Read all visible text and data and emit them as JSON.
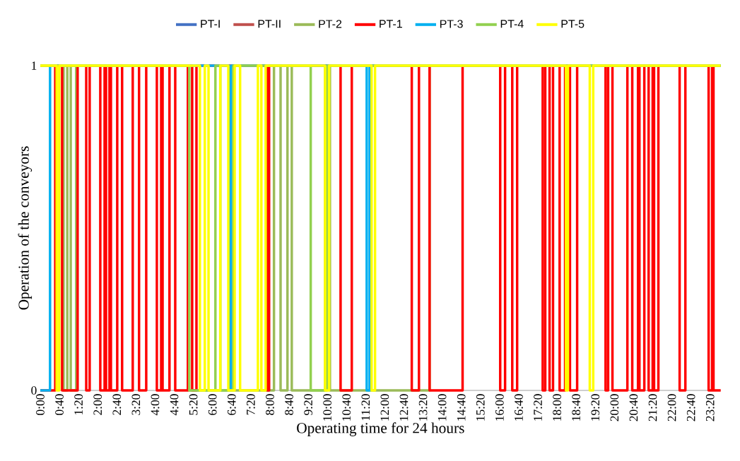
{
  "chart_data": {
    "type": "step",
    "xlabel": "Operating time for 24 hours",
    "ylabel": "Operation of the conveyors",
    "xlim": [
      0,
      23.7
    ],
    "ylim": [
      0,
      1
    ],
    "yticks": [
      0,
      1
    ],
    "xticks": [
      {
        "value": 0,
        "label": "0:00"
      },
      {
        "value": 0.6667,
        "label": "0:40"
      },
      {
        "value": 1.3333,
        "label": "1:20"
      },
      {
        "value": 2,
        "label": "2:00"
      },
      {
        "value": 2.6667,
        "label": "2:40"
      },
      {
        "value": 3.3333,
        "label": "3:20"
      },
      {
        "value": 4,
        "label": "4:00"
      },
      {
        "value": 4.6667,
        "label": "4:40"
      },
      {
        "value": 5.3333,
        "label": "5:20"
      },
      {
        "value": 6,
        "label": "6:00"
      },
      {
        "value": 6.6667,
        "label": "6:40"
      },
      {
        "value": 7.3333,
        "label": "7:20"
      },
      {
        "value": 8,
        "label": "8:00"
      },
      {
        "value": 8.6667,
        "label": "8:40"
      },
      {
        "value": 9.3333,
        "label": "9:20"
      },
      {
        "value": 10,
        "label": "10:00"
      },
      {
        "value": 10.6667,
        "label": "10:40"
      },
      {
        "value": 11.3333,
        "label": "11:20"
      },
      {
        "value": 12,
        "label": "12:00"
      },
      {
        "value": 12.6667,
        "label": "12:40"
      },
      {
        "value": 13.3333,
        "label": "13:20"
      },
      {
        "value": 14,
        "label": "14:00"
      },
      {
        "value": 14.6667,
        "label": "14:40"
      },
      {
        "value": 15.3333,
        "label": "15:20"
      },
      {
        "value": 16,
        "label": "16:00"
      },
      {
        "value": 16.6667,
        "label": "16:40"
      },
      {
        "value": 17.3333,
        "label": "17:20"
      },
      {
        "value": 18,
        "label": "18:00"
      },
      {
        "value": 18.6667,
        "label": "18:40"
      },
      {
        "value": 19.3333,
        "label": "19:20"
      },
      {
        "value": 20,
        "label": "20:00"
      },
      {
        "value": 20.6667,
        "label": "20:40"
      },
      {
        "value": 21.3333,
        "label": "21:20"
      },
      {
        "value": 22,
        "label": "22:00"
      },
      {
        "value": 22.6667,
        "label": "22:40"
      },
      {
        "value": 23.3333,
        "label": "23:20"
      }
    ],
    "legend": "top",
    "grid": false,
    "series": [
      {
        "name": "PT-I",
        "color": "#4472c4"
      },
      {
        "name": "PT-II",
        "color": "#c0504d"
      },
      {
        "name": "PT-2",
        "color": "#9bbb59",
        "x": [
          0,
          0.81,
          0.94,
          1.06,
          1.25,
          5.17,
          8.14,
          8.37,
          8.61,
          8.76,
          9.92,
          10.09,
          13.56,
          23.7
        ],
        "values": [
          1,
          0,
          1,
          0,
          1,
          0,
          1,
          0,
          1,
          0,
          1,
          0,
          1,
          1
        ]
      },
      {
        "name": "PT-1",
        "color": "#ff0000",
        "x": [
          0,
          0.52,
          0.76,
          1.3,
          1.6,
          1.72,
          2.09,
          2.24,
          2.29,
          2.41,
          2.46,
          2.68,
          2.85,
          3.22,
          3.44,
          3.69,
          4.06,
          4.21,
          4.26,
          4.5,
          4.7,
          5.14,
          5.29,
          5.44,
          7.9,
          7.97,
          10.46,
          10.85,
          12.94,
          13.19,
          13.56,
          14.71,
          16.02,
          16.19,
          16.44,
          16.61,
          17.5,
          17.59,
          17.74,
          17.86,
          18.09,
          18.28,
          18.45,
          18.7,
          19.69,
          19.78,
          19.93,
          20.45,
          20.62,
          20.82,
          20.87,
          21.04,
          21.19,
          21.33,
          21.38,
          21.53,
          22.27,
          22.47,
          23.28,
          23.4,
          23.45,
          23.7
        ],
        "values": [
          0,
          1,
          0,
          1,
          0,
          1,
          0,
          1,
          0,
          1,
          0,
          1,
          0,
          1,
          0,
          1,
          0,
          1,
          0,
          1,
          0,
          1,
          0,
          1,
          0,
          1,
          0,
          1,
          0,
          1,
          0,
          1,
          0,
          1,
          0,
          1,
          0,
          1,
          0,
          1,
          0,
          1,
          0,
          1,
          0,
          1,
          0,
          1,
          0,
          1,
          0,
          1,
          0,
          1,
          0,
          1,
          0,
          1,
          0,
          1,
          0,
          0
        ]
      },
      {
        "name": "PT-3",
        "color": "#00b0f0",
        "x": [
          0,
          0.34,
          6.57,
          6.64,
          11.37,
          11.47,
          23.7
        ],
        "values": [
          0,
          1,
          0,
          1,
          0,
          1,
          1
        ]
      },
      {
        "name": "PT-4",
        "color": "#92d050",
        "x": [
          0,
          5.19,
          6.1,
          6.27,
          6.72,
          9.42,
          9.99,
          23.7
        ],
        "values": [
          1,
          0,
          1,
          0,
          1,
          0,
          1,
          1
        ]
      },
      {
        "name": "PT-5",
        "color": "#ffff00",
        "x": [
          0,
          0.57,
          0.66,
          5.56,
          5.73,
          5.86,
          6.27,
          6.55,
          6.77,
          6.96,
          7.58,
          7.7,
          7.85,
          9.92,
          10.06,
          11.54,
          11.66,
          18.31,
          18.38,
          19.14,
          19.26,
          23.7
        ],
        "values": [
          1,
          0,
          1,
          0,
          1,
          0,
          1,
          0,
          1,
          0,
          1,
          0,
          1,
          0,
          1,
          0,
          1,
          0,
          1,
          0,
          1,
          1
        ]
      }
    ]
  }
}
